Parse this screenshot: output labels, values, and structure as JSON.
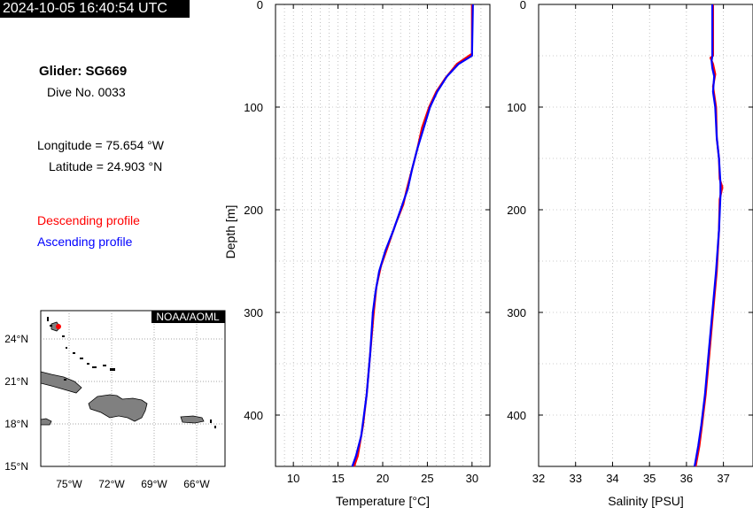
{
  "header": {
    "timestamp": "2024-10-05 16:40:54 UTC"
  },
  "info": {
    "glider": "Glider: SG669",
    "dive": "Dive No. 0033",
    "longitude": "Longitude = 75.654 °W",
    "latitude": "Latitude = 24.903 °N"
  },
  "legend": {
    "descending": "Descending profile",
    "ascending": "Ascending profile",
    "descending_color": "#ff0000",
    "ascending_color": "#0000ff"
  },
  "map": {
    "credit": "NOAA/AOML",
    "lat_labels": [
      "24°N",
      "21°N",
      "18°N",
      "15°N"
    ],
    "lon_labels": [
      "75°W",
      "72°W",
      "69°W",
      "66°W"
    ],
    "land_color": "#808080",
    "glider_color": "#ff0000"
  },
  "chart_data": [
    {
      "type": "line",
      "xlabel": "Temperature [°C]",
      "ylabel": "Depth [m]",
      "xlim": [
        8,
        32
      ],
      "ylim": [
        450,
        0
      ],
      "x_ticks": [
        10,
        15,
        20,
        25,
        30
      ],
      "y_ticks": [
        0,
        100,
        200,
        300,
        400
      ],
      "grid": true,
      "series": [
        {
          "color": "#ff0000",
          "points": [
            [
              30.0,
              0
            ],
            [
              30.0,
              48
            ],
            [
              28.3,
              58
            ],
            [
              27.0,
              72
            ],
            [
              26.0,
              85
            ],
            [
              25.2,
              100
            ],
            [
              24.4,
              120
            ],
            [
              23.9,
              140
            ],
            [
              23.3,
              160
            ],
            [
              22.7,
              180
            ],
            [
              22.3,
              195
            ],
            [
              21.4,
              215
            ],
            [
              20.6,
              235
            ],
            [
              19.8,
              255
            ],
            [
              19.3,
              275
            ],
            [
              19.0,
              300
            ],
            [
              18.6,
              340
            ],
            [
              18.2,
              380
            ],
            [
              17.8,
              410
            ],
            [
              17.2,
              440
            ],
            [
              16.8,
              450
            ]
          ]
        },
        {
          "color": "#0000ff",
          "points": [
            [
              30.1,
              0
            ],
            [
              30.0,
              50
            ],
            [
              28.5,
              58
            ],
            [
              27.2,
              70
            ],
            [
              26.1,
              85
            ],
            [
              25.3,
              100
            ],
            [
              24.6,
              120
            ],
            [
              23.9,
              140
            ],
            [
              23.3,
              160
            ],
            [
              22.8,
              180
            ],
            [
              22.0,
              200
            ],
            [
              21.2,
              220
            ],
            [
              20.3,
              240
            ],
            [
              19.6,
              260
            ],
            [
              19.2,
              280
            ],
            [
              18.9,
              300
            ],
            [
              18.6,
              340
            ],
            [
              18.2,
              380
            ],
            [
              17.6,
              420
            ],
            [
              17.0,
              440
            ],
            [
              16.6,
              450
            ]
          ]
        }
      ]
    },
    {
      "type": "line",
      "xlabel": "Salinity [PSU]",
      "ylabel": "",
      "xlim": [
        32,
        37.8
      ],
      "ylim": [
        450,
        0
      ],
      "x_ticks": [
        32,
        33,
        34,
        35,
        36,
        37
      ],
      "y_ticks": [
        0,
        100,
        200,
        300,
        400
      ],
      "grid": true,
      "series": [
        {
          "color": "#ff0000",
          "points": [
            [
              36.72,
              0
            ],
            [
              36.72,
              50
            ],
            [
              36.65,
              52
            ],
            [
              36.72,
              58
            ],
            [
              36.78,
              68
            ],
            [
              36.72,
              80
            ],
            [
              36.8,
              100
            ],
            [
              36.82,
              130
            ],
            [
              36.88,
              150
            ],
            [
              36.9,
              170
            ],
            [
              36.97,
              178
            ],
            [
              36.9,
              190
            ],
            [
              36.88,
              220
            ],
            [
              36.82,
              260
            ],
            [
              36.72,
              300
            ],
            [
              36.62,
              340
            ],
            [
              36.52,
              380
            ],
            [
              36.42,
              410
            ],
            [
              36.35,
              430
            ],
            [
              36.25,
              450
            ]
          ]
        },
        {
          "color": "#0000ff",
          "points": [
            [
              36.7,
              0
            ],
            [
              36.7,
              50
            ],
            [
              36.68,
              55
            ],
            [
              36.7,
              62
            ],
            [
              36.75,
              70
            ],
            [
              36.72,
              85
            ],
            [
              36.78,
              100
            ],
            [
              36.82,
              130
            ],
            [
              36.88,
              150
            ],
            [
              36.92,
              175
            ],
            [
              36.92,
              185
            ],
            [
              36.88,
              220
            ],
            [
              36.8,
              260
            ],
            [
              36.7,
              300
            ],
            [
              36.6,
              340
            ],
            [
              36.5,
              380
            ],
            [
              36.4,
              410
            ],
            [
              36.32,
              430
            ],
            [
              36.22,
              450
            ]
          ]
        }
      ]
    }
  ]
}
